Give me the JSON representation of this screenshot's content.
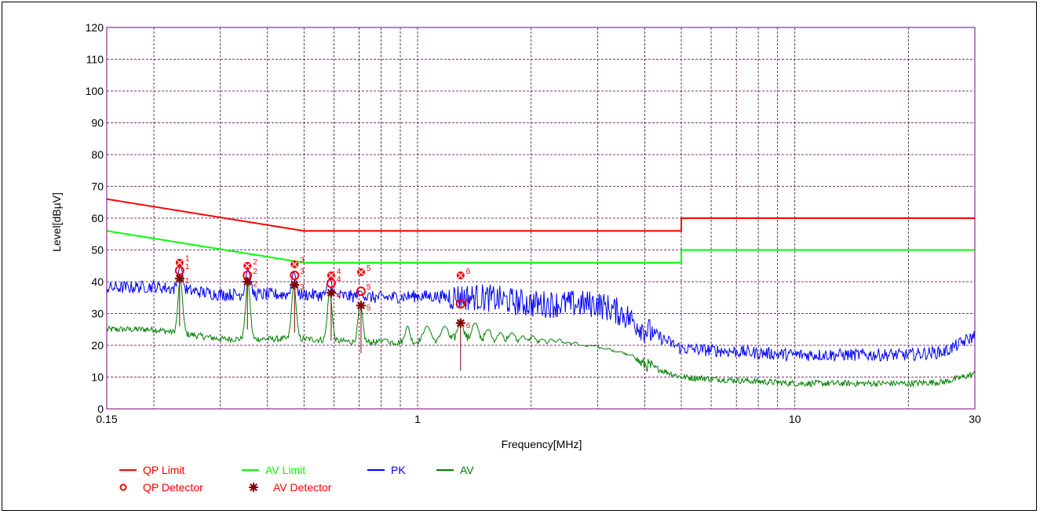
{
  "chart_data": {
    "type": "line",
    "title": "",
    "xlabel": "Frequency[MHz]",
    "ylabel": "Level[dBµV]",
    "x_scale": "log",
    "xlim": [
      0.15,
      30
    ],
    "ylim": [
      0,
      120
    ],
    "grid": true,
    "legend_position": "bottom-left",
    "x_ticks": [
      {
        "value": 0.15,
        "label": "0.15"
      },
      {
        "value": 1,
        "label": "1"
      },
      {
        "value": 10,
        "label": "10"
      },
      {
        "value": 30,
        "label": "30"
      }
    ],
    "y_ticks": [
      0,
      10,
      20,
      30,
      40,
      50,
      60,
      70,
      80,
      90,
      100,
      110,
      120
    ],
    "colors": {
      "qp_limit": "#ff0000",
      "av_limit": "#00ff00",
      "pk": "#0000ff",
      "av": "#008000",
      "qp_detector": "#ff0000",
      "av_detector": "#800000",
      "grid": "#400040",
      "plot_border": "#800080"
    },
    "series": [
      {
        "name": "QP Limit",
        "key": "qp_limit",
        "points": [
          [
            0.15,
            66
          ],
          [
            0.5,
            56
          ],
          [
            5,
            56
          ],
          [
            5,
            60
          ],
          [
            30,
            60
          ]
        ]
      },
      {
        "name": "AV Limit",
        "key": "av_limit",
        "points": [
          [
            0.15,
            56
          ],
          [
            0.5,
            46
          ],
          [
            5,
            46
          ],
          [
            5,
            50
          ],
          [
            30,
            50
          ]
        ]
      },
      {
        "name": "PK",
        "key": "pk",
        "points": [
          [
            0.15,
            38
          ],
          [
            0.2,
            38.5
          ],
          [
            0.3,
            36
          ],
          [
            0.5,
            36
          ],
          [
            0.8,
            35
          ],
          [
            1.0,
            35.5
          ],
          [
            1.5,
            35
          ],
          [
            2.0,
            33
          ],
          [
            3.0,
            33
          ],
          [
            3.5,
            30
          ],
          [
            4.0,
            25
          ],
          [
            5.0,
            19
          ],
          [
            7.0,
            18
          ],
          [
            10.0,
            17
          ],
          [
            15.0,
            17
          ],
          [
            20.0,
            17
          ],
          [
            25.0,
            18
          ],
          [
            30.0,
            23
          ]
        ]
      },
      {
        "name": "AV",
        "key": "av",
        "points": [
          [
            0.15,
            25
          ],
          [
            0.2,
            25
          ],
          [
            0.3,
            22
          ],
          [
            0.5,
            22
          ],
          [
            0.7,
            21
          ],
          [
            1.0,
            21
          ],
          [
            1.5,
            20
          ],
          [
            2.0,
            18
          ],
          [
            3.0,
            17
          ],
          [
            4.0,
            14
          ],
          [
            5.0,
            10
          ],
          [
            7.0,
            9
          ],
          [
            10.0,
            8
          ],
          [
            15.0,
            8
          ],
          [
            20.0,
            8
          ],
          [
            25.0,
            8.5
          ],
          [
            30.0,
            11
          ]
        ]
      }
    ],
    "peaks_av": [
      {
        "f": 0.235,
        "v": 41
      },
      {
        "f": 0.355,
        "v": 40
      },
      {
        "f": 0.47,
        "v": 39
      },
      {
        "f": 0.585,
        "v": 37
      },
      {
        "f": 0.705,
        "v": 33
      },
      {
        "f": 0.82,
        "v": 22
      },
      {
        "f": 0.94,
        "v": 26
      },
      {
        "f": 1.06,
        "v": 26
      },
      {
        "f": 1.18,
        "v": 26
      },
      {
        "f": 1.3,
        "v": 27
      },
      {
        "f": 1.42,
        "v": 27
      },
      {
        "f": 1.54,
        "v": 25
      },
      {
        "f": 1.66,
        "v": 24
      },
      {
        "f": 1.78,
        "v": 24
      },
      {
        "f": 1.9,
        "v": 23
      },
      {
        "f": 2.02,
        "v": 23
      },
      {
        "f": 2.14,
        "v": 22
      },
      {
        "f": 2.26,
        "v": 22
      },
      {
        "f": 2.38,
        "v": 22
      },
      {
        "f": 2.5,
        "v": 21
      },
      {
        "f": 2.62,
        "v": 21
      },
      {
        "f": 2.74,
        "v": 20
      },
      {
        "f": 2.86,
        "v": 20
      },
      {
        "f": 2.98,
        "v": 20
      },
      {
        "f": 3.1,
        "v": 19
      },
      {
        "f": 3.22,
        "v": 19
      },
      {
        "f": 3.34,
        "v": 18
      },
      {
        "f": 3.46,
        "v": 18
      },
      {
        "f": 3.58,
        "v": 17
      },
      {
        "f": 3.7,
        "v": 17
      }
    ],
    "markers": [
      {
        "id": "1",
        "f": 0.234,
        "qp_peak": 46,
        "qp": 43.5,
        "av": 41
      },
      {
        "id": "2",
        "f": 0.354,
        "qp_peak": 45,
        "qp": 42,
        "av": 40
      },
      {
        "id": "3",
        "f": 0.472,
        "qp_peak": 45.5,
        "qp": 42,
        "av": 39
      },
      {
        "id": "4",
        "f": 0.59,
        "qp_peak": 42,
        "qp": 39.5,
        "av": 36.5
      },
      {
        "id": "5",
        "f": 0.708,
        "qp_peak": 43,
        "qp": 37,
        "av": 32.5
      },
      {
        "id": "6",
        "f": 1.3,
        "qp_peak": 42,
        "qp": 33,
        "av": 27
      }
    ]
  },
  "legend": [
    {
      "label": "QP Limit",
      "kind": "line",
      "key": "qp_limit"
    },
    {
      "label": "AV Limit",
      "kind": "line",
      "key": "av_limit"
    },
    {
      "label": "PK",
      "kind": "line",
      "key": "pk"
    },
    {
      "label": "AV",
      "kind": "line",
      "key": "av"
    },
    {
      "label": "QP Detector",
      "kind": "circle",
      "key": "qp_detector"
    },
    {
      "label": "AV Detector",
      "kind": "star",
      "key": "av_detector"
    }
  ]
}
